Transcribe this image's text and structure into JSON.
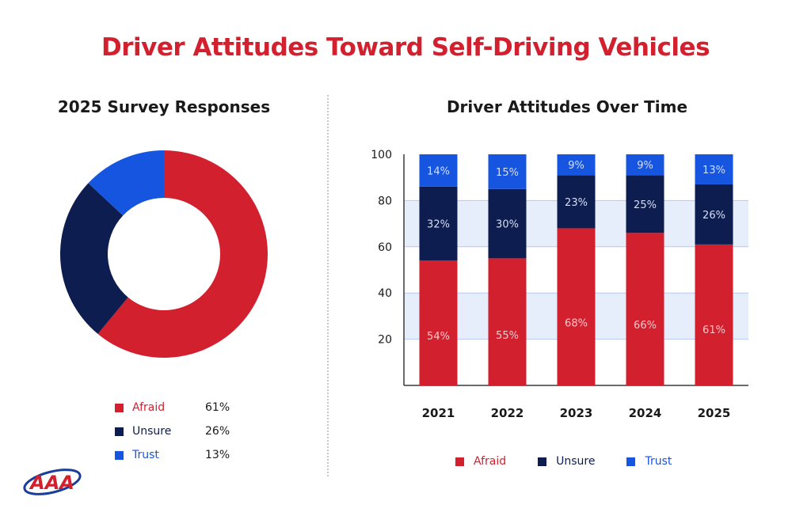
{
  "title": "Driver Attitudes Toward Self-Driving Vehicles",
  "colors": {
    "afraid": "#d3202f",
    "unsure": "#0e1d4f",
    "trust": "#1655e0",
    "title": "#d3202f"
  },
  "logo": {
    "text": "AAA",
    "icon": "aaa-oval-logo"
  },
  "chart_data": [
    {
      "type": "pie",
      "title": "2025 Survey Responses",
      "donut": true,
      "legend_position": "bottom",
      "slices": [
        {
          "label": "Afraid",
          "value": 61,
          "display": "61%",
          "color": "#d3202f"
        },
        {
          "label": "Unsure",
          "value": 26,
          "display": "26%",
          "color": "#0e1d4f"
        },
        {
          "label": "Trust",
          "value": 13,
          "display": "13%",
          "color": "#1655e0"
        }
      ]
    },
    {
      "type": "bar",
      "stacked": true,
      "title": "Driver Attitudes Over Time",
      "categories": [
        "2021",
        "2022",
        "2023",
        "2024",
        "2025"
      ],
      "ylim": [
        0,
        100
      ],
      "yticks": [
        20,
        40,
        60,
        80,
        100
      ],
      "grid": "alternating bands",
      "legend_position": "bottom",
      "series": [
        {
          "name": "Afraid",
          "color": "#d3202f",
          "values": [
            54,
            55,
            68,
            66,
            61
          ],
          "labels": [
            "54%",
            "55%",
            "68%",
            "66%",
            "61%"
          ]
        },
        {
          "name": "Unsure",
          "color": "#0e1d4f",
          "values": [
            32,
            30,
            23,
            25,
            26
          ],
          "labels": [
            "32%",
            "30%",
            "23%",
            "25%",
            "26%"
          ]
        },
        {
          "name": "Trust",
          "color": "#1655e0",
          "values": [
            14,
            15,
            9,
            9,
            13
          ],
          "labels": [
            "14%",
            "15%",
            "9%",
            "9%",
            "13%"
          ]
        }
      ]
    }
  ]
}
